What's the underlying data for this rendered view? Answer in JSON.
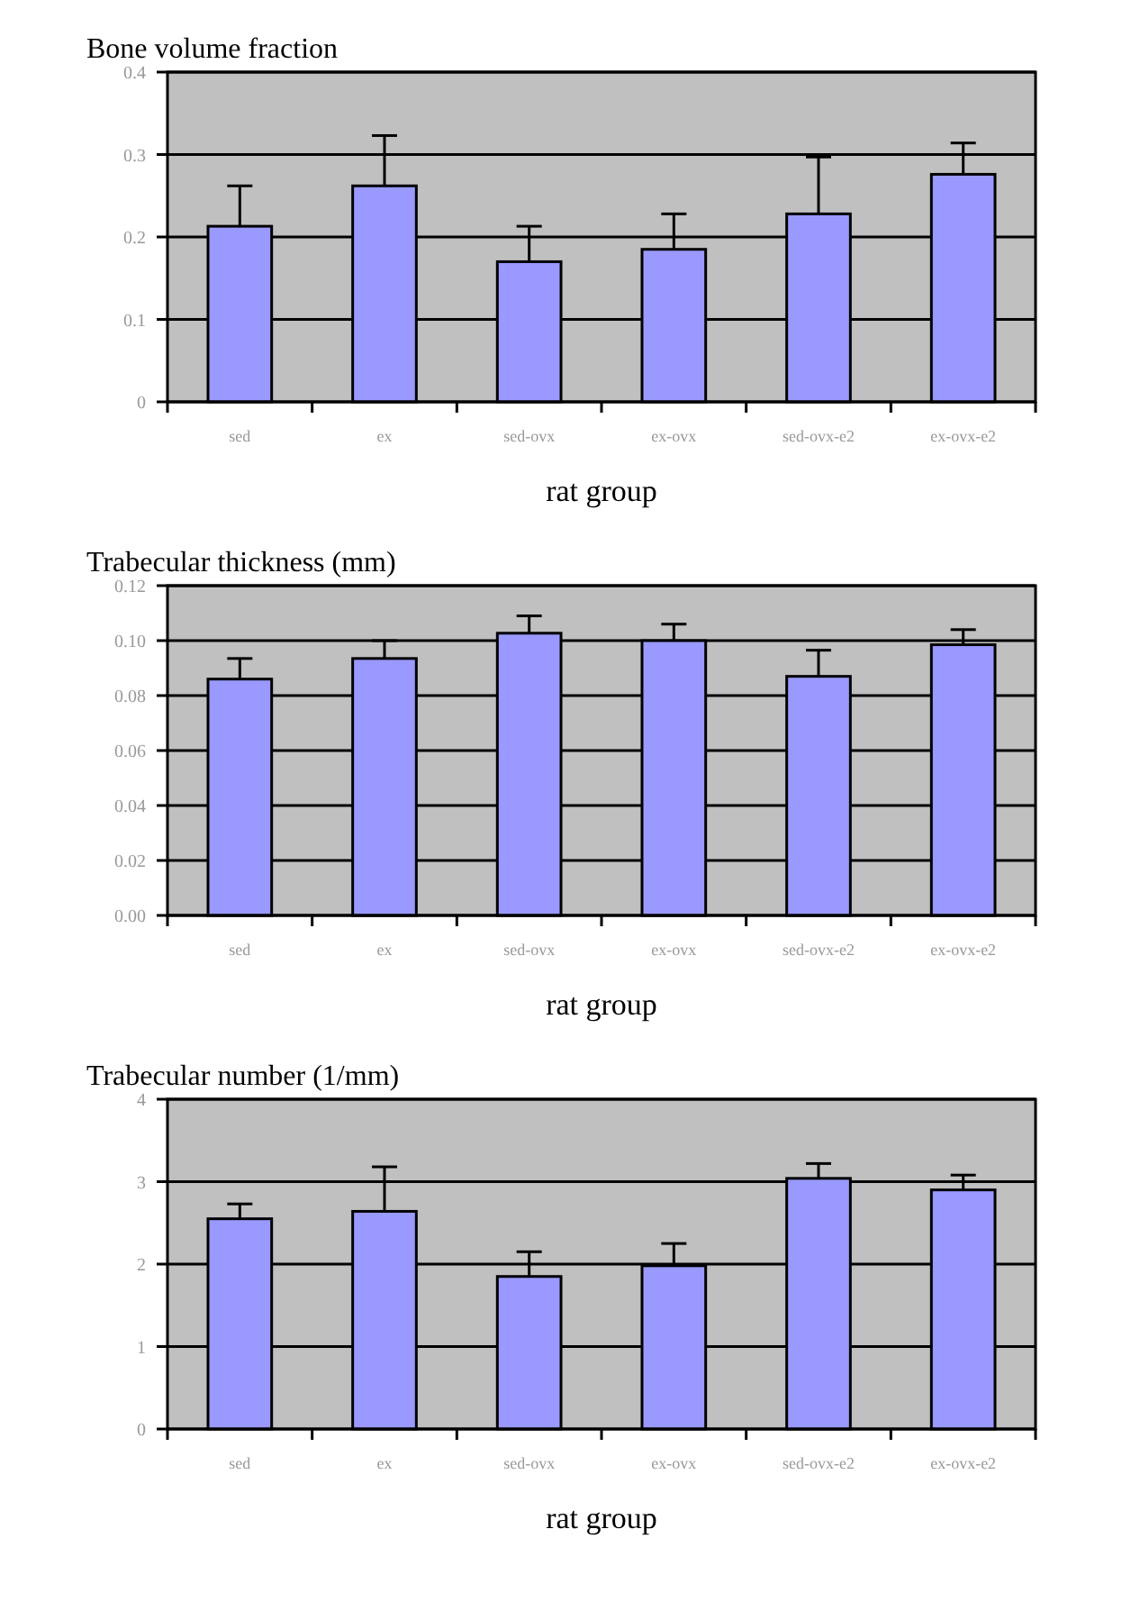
{
  "chart_data": [
    {
      "type": "bar",
      "title": "Bone volume fraction",
      "xlabel": "rat group",
      "categories": [
        "sed",
        "ex",
        "sed-ovx",
        "ex-ovx",
        "sed-ovx-e2",
        "ex-ovx-e2"
      ],
      "color": "#9999ff",
      "values": [
        0.213,
        0.262,
        0.17,
        0.185,
        0.228,
        0.276
      ],
      "errors": [
        [
          0.213,
          0.262
        ],
        [
          0.262,
          0.323
        ],
        [
          0.17,
          0.213
        ],
        [
          0.185,
          0.228
        ],
        [
          0.228,
          0.297
        ],
        [
          0.276,
          0.314
        ]
      ],
      "ylim": [
        0,
        0.4
      ],
      "yticks": [
        0,
        0.1,
        0.2,
        0.3,
        0.4
      ],
      "grid": "y"
    },
    {
      "type": "bar",
      "title": "Trabecular thickness (mm)",
      "xlabel": "rat group",
      "categories": [
        "sed",
        "ex",
        "sed-ovx",
        "ex-ovx",
        "sed-ovx-e2",
        "ex-ovx-e2"
      ],
      "color": "#9999ff",
      "values": [
        0.086,
        0.0935,
        0.1027,
        0.1,
        0.087,
        0.0985
      ],
      "errors": [
        [
          0.086,
          0.0935
        ],
        [
          0.0935,
          0.1
        ],
        [
          0.1027,
          0.109
        ],
        [
          0.1,
          0.106
        ],
        [
          0.087,
          0.0965
        ],
        [
          0.0985,
          0.104
        ]
      ],
      "ylim": [
        0,
        0.12
      ],
      "yticks": [
        {
          "value": 0,
          "label": "0.00"
        },
        {
          "value": 0.02,
          "label": "0.02"
        },
        {
          "value": 0.04,
          "label": "0.04"
        },
        {
          "value": 0.06,
          "label": "0.06"
        },
        {
          "value": 0.08,
          "label": "0.08"
        },
        {
          "value": 0.1,
          "label": "0.10"
        },
        {
          "value": 0.12,
          "label": "0.12"
        }
      ],
      "grid": "y"
    },
    {
      "type": "bar",
      "title": "Trabecular number (1/mm)",
      "xlabel": "rat group",
      "categories": [
        "sed",
        "ex",
        "sed-ovx",
        "ex-ovx",
        "sed-ovx-e2",
        "ex-ovx-e2"
      ],
      "color": "#9999ff",
      "values": [
        2.55,
        2.64,
        1.85,
        1.98,
        3.04,
        2.9
      ],
      "errors": [
        [
          2.55,
          2.73
        ],
        [
          2.64,
          3.18
        ],
        [
          1.85,
          2.15
        ],
        [
          1.98,
          2.25
        ],
        [
          3.04,
          3.22
        ],
        [
          2.9,
          3.08
        ]
      ],
      "ylim": [
        0,
        4
      ],
      "yticks": [
        0,
        1,
        2,
        3,
        4
      ],
      "grid": "y"
    }
  ]
}
